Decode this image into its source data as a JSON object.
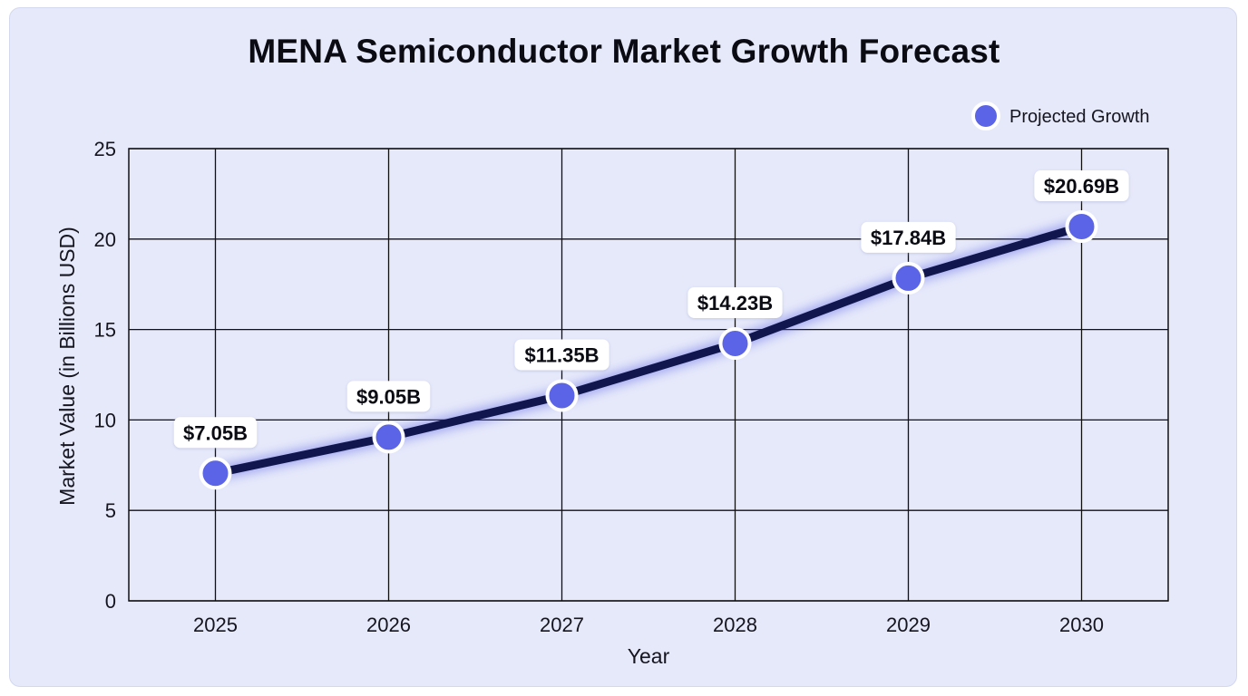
{
  "chart_data": {
    "type": "line",
    "title": "MENA Semiconductor Market Growth Forecast",
    "xlabel": "Year",
    "ylabel": "Market Value (in Billions USD)",
    "x": [
      "2025",
      "2026",
      "2027",
      "2028",
      "2029",
      "2030"
    ],
    "ylim": [
      0,
      25
    ],
    "yticks": [
      "0",
      "5",
      "10",
      "15",
      "20",
      "25"
    ],
    "grid": true,
    "legend_position": "top-right",
    "series": [
      {
        "name": "Projected Growth",
        "values": [
          7.05,
          9.05,
          11.35,
          14.23,
          17.84,
          20.69
        ],
        "labels": [
          "$7.05B",
          "$9.05B",
          "$11.35B",
          "$14.23B",
          "$17.84B",
          "$20.69B"
        ],
        "line_color": "#12164f",
        "marker_color": "#5b63e6"
      }
    ]
  }
}
